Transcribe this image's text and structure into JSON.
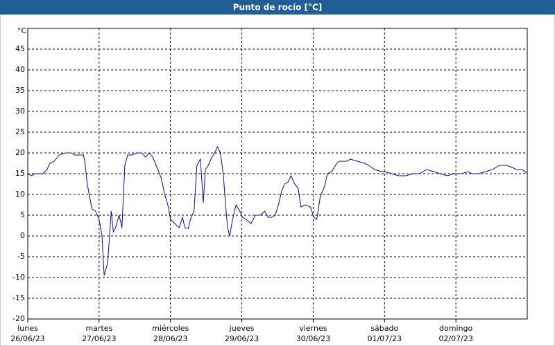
{
  "chart_data": {
    "type": "line",
    "title": "Punto de rocío [°C]",
    "y_unit": "°C",
    "xlim": [
      0,
      7
    ],
    "xticks": [
      {
        "value": 0,
        "label": "lunes\n26/06/23"
      },
      {
        "value": 1,
        "label": "martes\n27/06/23"
      },
      {
        "value": 2,
        "label": "miércoles\n28/06/23"
      },
      {
        "value": 3,
        "label": "jueves\n29/06/23"
      },
      {
        "value": 4,
        "label": "viernes\n30/06/23"
      },
      {
        "value": 5,
        "label": "sábado\n01/07/23"
      },
      {
        "value": 6,
        "label": "domingo\n02/07/23"
      }
    ],
    "ylim": [
      -20,
      50
    ],
    "yticks": [
      -20,
      -15,
      -10,
      -5,
      0,
      5,
      10,
      15,
      20,
      25,
      30,
      35,
      40,
      45
    ],
    "grid": true,
    "series": [
      {
        "color": "#0a0a9c",
        "x": [
          0,
          0.05,
          0.1,
          0.15,
          0.21,
          0.27,
          0.31,
          0.37,
          0.44,
          0.53,
          0.61,
          0.66,
          0.73,
          0.78,
          0.8,
          0.83,
          0.86,
          0.9,
          0.95,
          1.0,
          1.04,
          1.07,
          1.12,
          1.15,
          1.17,
          1.2,
          1.23,
          1.28,
          1.32,
          1.36,
          1.4,
          1.46,
          1.53,
          1.6,
          1.65,
          1.7,
          1.75,
          1.8,
          1.87,
          1.92,
          1.97,
          2.0,
          2.06,
          2.12,
          2.17,
          2.2,
          2.25,
          2.28,
          2.33,
          2.37,
          2.42,
          2.46,
          2.49,
          2.53,
          2.58,
          2.62,
          2.66,
          2.7,
          2.74,
          2.77,
          2.8,
          2.83,
          2.87,
          2.92,
          2.97,
          3.01,
          3.06,
          3.13,
          3.19,
          3.26,
          3.32,
          3.37,
          3.42,
          3.47,
          3.52,
          3.56,
          3.6,
          3.65,
          3.69,
          3.74,
          3.79,
          3.83,
          3.89,
          3.96,
          4.01,
          4.05,
          4.1,
          4.16,
          4.2,
          4.26,
          4.33,
          4.37,
          4.47,
          4.52,
          4.62,
          4.72,
          4.78,
          4.86,
          4.96,
          5.01,
          5.1,
          5.2,
          5.3,
          5.4,
          5.49,
          5.59,
          5.69,
          5.78,
          5.88,
          5.98,
          6.08,
          6.17,
          6.22,
          6.32,
          6.42,
          6.51,
          6.61,
          6.71,
          6.79,
          6.85,
          6.92,
          6.97,
          7.0
        ],
        "values": [
          15,
          14.5,
          15,
          15,
          15,
          16,
          17.5,
          18,
          19.5,
          20,
          20,
          19.5,
          19.5,
          19.5,
          18,
          13,
          10,
          6.5,
          6,
          4,
          0,
          -9.5,
          -6.5,
          1,
          6,
          1,
          2,
          5,
          2,
          17,
          19.5,
          19.5,
          20,
          20,
          19,
          20,
          19,
          17,
          14,
          10,
          7,
          4,
          3,
          2,
          4.5,
          2,
          1.8,
          4,
          6,
          17,
          18.5,
          8,
          16,
          17,
          19,
          20,
          21.5,
          20,
          15,
          8,
          2,
          0,
          4,
          7.5,
          6,
          4.5,
          4,
          3,
          5,
          5,
          6,
          4.5,
          4.5,
          5,
          8,
          11,
          12.5,
          13,
          14.5,
          12.5,
          11.5,
          7,
          7.5,
          7,
          4.5,
          4,
          9.5,
          12,
          15,
          15.5,
          17.5,
          18,
          18,
          18.5,
          18,
          17.5,
          17,
          16,
          15.5,
          15.5,
          15,
          14.5,
          14.5,
          15,
          15,
          16,
          15.5,
          15,
          14.5,
          15,
          15,
          15.5,
          15,
          15,
          15.5,
          16,
          17,
          17,
          16.5,
          16,
          16,
          15.5,
          15
        ]
      }
    ]
  }
}
